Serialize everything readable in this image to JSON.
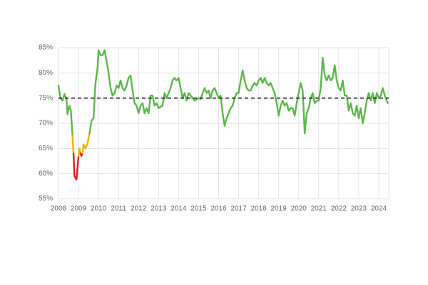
{
  "chart_data": {
    "type": "line",
    "xlim": [
      2008,
      2024.5
    ],
    "xticks": [
      2008,
      2009,
      2010,
      2011,
      2012,
      2013,
      2014,
      2015,
      2016,
      2017,
      2018,
      2019,
      2020,
      2021,
      2022,
      2023,
      2024
    ],
    "ylim": [
      55,
      85
    ],
    "yticks": [
      {
        "value": 55,
        "label": "55%"
      },
      {
        "value": 60,
        "label": "60%"
      },
      {
        "value": 65,
        "label": "65%"
      },
      {
        "value": 70,
        "label": "70%"
      },
      {
        "value": 75,
        "label": "75%"
      },
      {
        "value": 80,
        "label": "80%"
      },
      {
        "value": 85,
        "label": "85%"
      }
    ],
    "grid": true,
    "reference_line": {
      "value": 75,
      "color": "#222222",
      "dashed": true
    },
    "series": [
      {
        "color": "#5cb84a",
        "x": [
          2008.0,
          2008.1,
          2008.2,
          2008.3,
          2008.4,
          2008.45,
          2008.55,
          2008.62,
          2008.7
        ],
        "values": [
          77.5,
          75,
          74.5,
          75.8,
          74.8,
          71.8,
          73.5,
          72.5,
          67.5
        ]
      },
      {
        "color": "#f0b400",
        "x": [
          2008.7,
          2008.75
        ],
        "values": [
          67.5,
          64
        ]
      },
      {
        "color": "#d62020",
        "x": [
          2008.75,
          2008.8,
          2008.9,
          2009.0
        ],
        "values": [
          64,
          59.5,
          58.8,
          63.5
        ]
      },
      {
        "color": "#f0b400",
        "x": [
          2009.0,
          2009.05,
          2009.1
        ],
        "values": [
          63.5,
          65,
          64
        ]
      },
      {
        "color": "#d62020",
        "x": [
          2009.1,
          2009.15,
          2009.2
        ],
        "values": [
          64,
          63.5,
          64
        ]
      },
      {
        "color": "#f0b400",
        "x": [
          2009.2,
          2009.25,
          2009.35,
          2009.45,
          2009.55
        ],
        "values": [
          64,
          65.8,
          65,
          66,
          68
        ]
      },
      {
        "color": "#5cb84a",
        "x": [
          2009.55,
          2009.65,
          2009.75,
          2009.85,
          2009.95,
          2010.0,
          2010.1,
          2010.2,
          2010.3,
          2010.4,
          2010.5,
          2010.6,
          2010.7,
          2010.8,
          2010.9,
          2011.0,
          2011.1,
          2011.2,
          2011.3,
          2011.4,
          2011.5,
          2011.6,
          2011.7,
          2011.8,
          2011.9,
          2012.0,
          2012.1,
          2012.2,
          2012.3,
          2012.4,
          2012.5,
          2012.6,
          2012.7,
          2012.8,
          2012.9,
          2013.0,
          2013.2,
          2013.3,
          2013.4,
          2013.5,
          2013.6,
          2013.7,
          2013.8,
          2013.9,
          2014.0,
          2014.1,
          2014.2,
          2014.3,
          2014.4,
          2014.5,
          2014.6,
          2014.7,
          2014.8,
          2015.0,
          2015.1,
          2015.2,
          2015.3,
          2015.4,
          2015.5,
          2015.6,
          2015.7,
          2015.8,
          2015.9,
          2016.0,
          2016.1,
          2016.2,
          2016.3,
          2016.4,
          2016.5,
          2016.6,
          2016.7,
          2016.8,
          2016.9,
          2017.0,
          2017.1,
          2017.2,
          2017.3,
          2017.4,
          2017.5,
          2017.6,
          2017.7,
          2017.8,
          2017.9,
          2018.0,
          2018.1,
          2018.2,
          2018.3,
          2018.4,
          2018.5,
          2018.6,
          2018.7,
          2018.8,
          2018.9,
          2019.0,
          2019.1,
          2019.2,
          2019.3,
          2019.4,
          2019.5,
          2019.6,
          2019.7,
          2019.8,
          2019.9,
          2020.0,
          2020.1,
          2020.2,
          2020.3,
          2020.4,
          2020.5,
          2020.6,
          2020.7,
          2020.8,
          2020.9,
          2021.0,
          2021.1,
          2021.2,
          2021.3,
          2021.4,
          2021.5,
          2021.6,
          2021.7,
          2021.8,
          2021.9,
          2022.0,
          2022.1,
          2022.2,
          2022.3,
          2022.4,
          2022.5,
          2022.6,
          2022.7,
          2022.8,
          2022.9,
          2023.0,
          2023.1,
          2023.2,
          2023.3,
          2023.4,
          2023.5,
          2023.6,
          2023.7,
          2023.8,
          2023.9,
          2024.0,
          2024.1,
          2024.2,
          2024.3,
          2024.45
        ],
        "values": [
          68,
          70.5,
          71,
          78,
          81,
          84.5,
          83.5,
          83.5,
          84.5,
          82.5,
          80,
          77,
          75.5,
          76,
          77.5,
          77,
          78.5,
          77,
          76.5,
          77.5,
          79,
          79.5,
          76.5,
          74,
          73.5,
          72,
          73.5,
          74,
          72,
          73,
          72,
          75.5,
          75.5,
          73.5,
          74,
          73,
          73.5,
          76,
          75,
          76,
          77,
          78.5,
          79,
          78.5,
          79,
          77,
          75,
          76,
          74.5,
          76,
          75.5,
          75,
          74.5,
          75,
          74.8,
          76,
          77,
          76,
          76.5,
          75,
          76.5,
          77,
          76,
          75,
          75.5,
          72,
          69.5,
          71,
          72,
          73,
          73.5,
          75,
          76,
          76,
          78.5,
          80.5,
          78.5,
          77,
          76.5,
          76.5,
          77.5,
          78,
          77.5,
          78.5,
          79,
          78,
          79,
          78,
          77.5,
          78,
          77,
          76,
          74,
          71.5,
          73.5,
          74.5,
          73.5,
          74,
          72.5,
          73,
          73,
          71.5,
          74,
          76,
          78,
          76.5,
          68,
          72,
          73,
          75,
          76,
          74,
          74.5,
          74.5,
          77,
          83,
          79.5,
          78.5,
          79.5,
          78.5,
          79,
          81.5,
          78.5,
          77,
          76.5,
          78.5,
          75.5,
          75.5,
          72.5,
          74,
          72,
          71.5,
          73.5,
          71,
          73,
          70,
          72,
          74.5,
          76,
          74.5,
          76,
          74,
          76,
          75,
          75.5,
          77,
          75.5,
          74
        ]
      }
    ]
  }
}
